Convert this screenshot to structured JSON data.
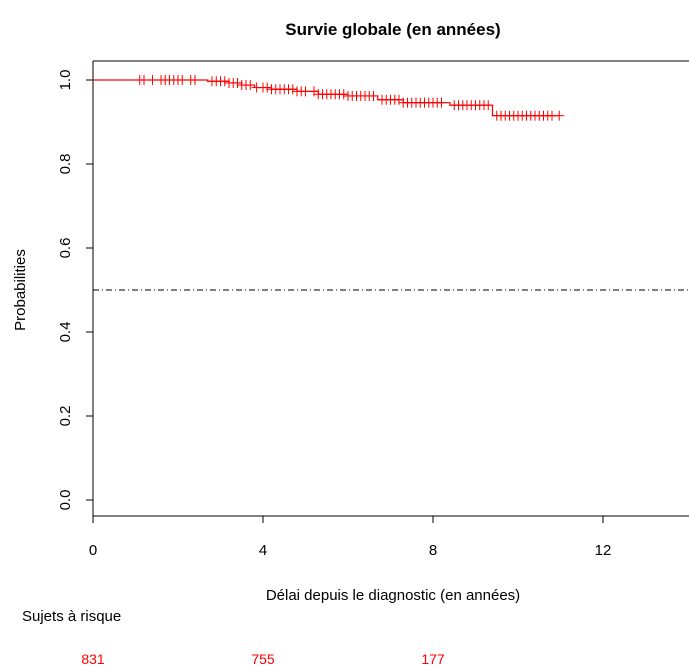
{
  "chart_data": {
    "type": "line",
    "title": "Survie globale (en années)",
    "xlabel": "Délai depuis le diagnostic (en années)",
    "ylabel": "Probabilities",
    "xlim": [
      0,
      14
    ],
    "ylim": [
      0,
      1.04
    ],
    "x_ticks": [
      0,
      4,
      8,
      12
    ],
    "y_ticks": [
      0.0,
      0.2,
      0.4,
      0.6,
      0.8,
      1.0
    ],
    "x_tick_labels": [
      "0",
      "4",
      "8",
      "12"
    ],
    "y_tick_labels": [
      "0.0",
      "0.2",
      "0.4",
      "0.6",
      "0.8",
      "1.0"
    ],
    "grid": false,
    "reference_line": {
      "y": 0.5,
      "style": "dash-dot"
    },
    "series": [
      {
        "color": "#ff0000",
        "steps": [
          [
            0,
            1.0
          ],
          [
            2.7,
            0.997
          ],
          [
            3.2,
            0.993
          ],
          [
            3.5,
            0.988
          ],
          [
            3.8,
            0.982
          ],
          [
            4.2,
            0.978
          ],
          [
            4.8,
            0.973
          ],
          [
            5.3,
            0.966
          ],
          [
            6.0,
            0.962
          ],
          [
            6.7,
            0.953
          ],
          [
            7.3,
            0.946
          ],
          [
            8.4,
            0.94
          ],
          [
            9.4,
            0.915
          ],
          [
            10.97,
            0.915
          ]
        ],
        "censored_times": [
          1.1,
          1.2,
          1.4,
          1.6,
          1.7,
          1.8,
          1.9,
          2.0,
          2.1,
          2.3,
          2.4,
          2.8,
          2.9,
          3.0,
          3.1,
          3.2,
          3.3,
          3.4,
          3.5,
          3.6,
          3.7,
          3.85,
          4.0,
          4.1,
          4.2,
          4.3,
          4.4,
          4.5,
          4.6,
          4.7,
          4.8,
          4.9,
          5.0,
          5.2,
          5.3,
          5.4,
          5.5,
          5.6,
          5.7,
          5.8,
          5.9,
          6.0,
          6.1,
          6.2,
          6.3,
          6.4,
          6.5,
          6.6,
          6.8,
          6.9,
          7.0,
          7.1,
          7.2,
          7.3,
          7.4,
          7.5,
          7.6,
          7.7,
          7.8,
          7.9,
          8.0,
          8.1,
          8.2,
          8.5,
          8.6,
          8.7,
          8.8,
          8.9,
          9.0,
          9.1,
          9.2,
          9.3,
          9.5,
          9.6,
          9.7,
          9.8,
          9.9,
          10.0,
          10.1,
          10.2,
          10.3,
          10.4,
          10.5,
          10.6,
          10.7,
          10.8,
          10.97
        ]
      }
    ],
    "risk_table": {
      "label": "Sujets à risque",
      "color": "#ff0000",
      "entries": [
        {
          "x": 0,
          "count": "831"
        },
        {
          "x": 4,
          "count": "755"
        },
        {
          "x": 8,
          "count": "177"
        }
      ]
    }
  }
}
